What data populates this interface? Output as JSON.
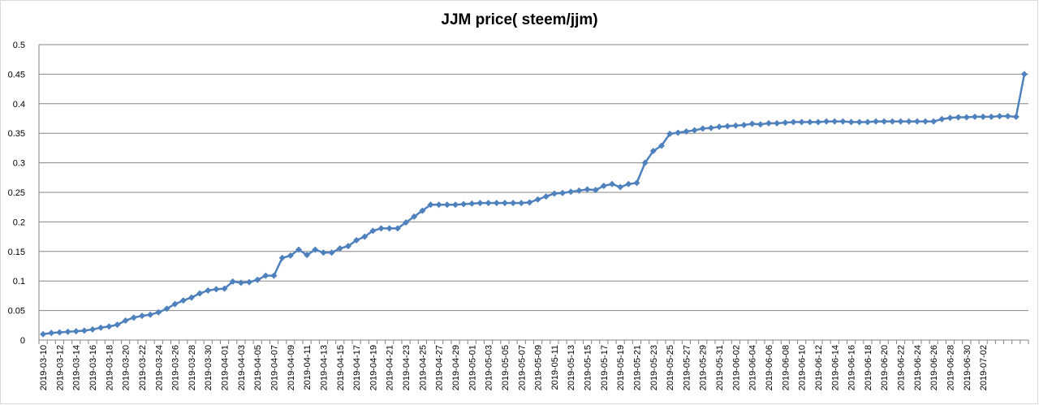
{
  "chart_data": {
    "type": "line",
    "title": "JJM price( steem/jjm)",
    "xlabel": "",
    "ylabel": "",
    "ylim": [
      0,
      0.5
    ],
    "y_ticks": [
      "0",
      "0.05",
      "0.1",
      "0.15",
      "0.2",
      "0.25",
      "0.3",
      "0.35",
      "0.4",
      "0.45",
      "0.5"
    ],
    "grid": true,
    "legend": "none",
    "x_labels": [
      "2019-03-10",
      "2019-03-12",
      "2019-03-14",
      "2019-03-16",
      "2019-03-18",
      "2019-03-20",
      "2019-03-22",
      "2019-03-24",
      "2019-03-26",
      "2019-03-28",
      "2019-03-30",
      "2019-04-01",
      "2019-04-03",
      "2019-04-05",
      "2019-04-07",
      "2019-04-09",
      "2019-04-11",
      "2019-04-13",
      "2019-04-15",
      "2019-04-17",
      "2019-04-19",
      "2019-04-21",
      "2019-04-23",
      "2019-04-25",
      "2019-04-27",
      "2019-04-29",
      "2019-05-01",
      "2019-05-03",
      "2019-05-05",
      "2019-05-07",
      "2019-05-09",
      "2019-05-11",
      "2019-05-13",
      "2019-05-15",
      "2019-05-17",
      "2019-05-19",
      "2019-05-21",
      "2019-05-23",
      "2019-05-25",
      "2019-05-27",
      "2019-05-29",
      "2019-05-31",
      "2019-06-02",
      "2019-06-04",
      "2019-06-06",
      "2019-06-08",
      "2019-06-10",
      "2019-06-12",
      "2019-06-14",
      "2019-06-16",
      "2019-06-18",
      "2019-06-20",
      "2019-06-22",
      "2019-06-24",
      "2019-06-26",
      "2019-06-28",
      "2019-06-30",
      "2019-07-02"
    ],
    "series": [
      {
        "name": "",
        "color": "#4F81BD",
        "values": [
          0.01,
          0.012,
          0.013,
          0.014,
          0.015,
          0.016,
          0.018,
          0.021,
          0.023,
          0.026,
          0.033,
          0.038,
          0.041,
          0.043,
          0.047,
          0.053,
          0.061,
          0.067,
          0.072,
          0.079,
          0.084,
          0.086,
          0.087,
          0.099,
          0.097,
          0.098,
          0.102,
          0.109,
          0.109,
          0.139,
          0.143,
          0.153,
          0.144,
          0.153,
          0.148,
          0.148,
          0.155,
          0.159,
          0.169,
          0.175,
          0.185,
          0.189,
          0.189,
          0.189,
          0.199,
          0.209,
          0.219,
          0.229,
          0.229,
          0.229,
          0.229,
          0.23,
          0.231,
          0.232,
          0.232,
          0.232,
          0.232,
          0.232,
          0.232,
          0.233,
          0.238,
          0.243,
          0.248,
          0.249,
          0.251,
          0.253,
          0.255,
          0.254,
          0.261,
          0.264,
          0.259,
          0.264,
          0.266,
          0.3,
          0.32,
          0.329,
          0.349,
          0.351,
          0.353,
          0.355,
          0.358,
          0.359,
          0.361,
          0.362,
          0.363,
          0.364,
          0.366,
          0.365,
          0.367,
          0.367,
          0.368,
          0.369,
          0.369,
          0.369,
          0.369,
          0.37,
          0.37,
          0.37,
          0.369,
          0.369,
          0.369,
          0.37,
          0.37,
          0.37,
          0.37,
          0.37,
          0.37,
          0.37,
          0.37,
          0.374,
          0.376,
          0.377,
          0.377,
          0.378,
          0.378,
          0.378,
          0.379,
          0.379,
          0.378,
          0.45
        ]
      }
    ]
  }
}
